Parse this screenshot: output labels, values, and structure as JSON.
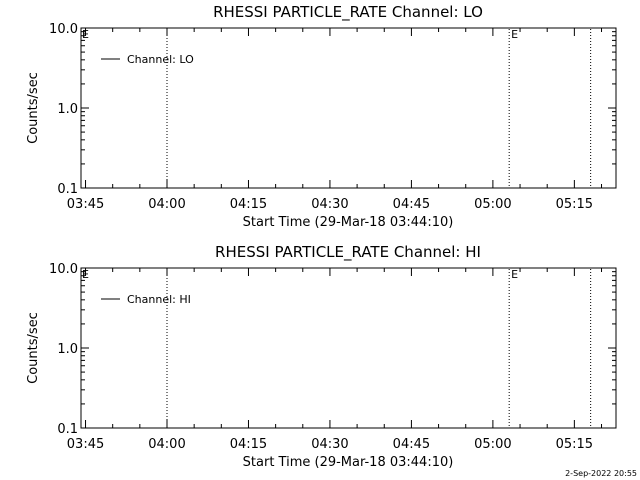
{
  "chart_data": [
    {
      "type": "line",
      "title": "RHESSI PARTICLE_RATE Channel: LO",
      "xlabel": "Start Time (29-Mar-18 03:44:10)",
      "ylabel": "Counts/sec",
      "y_scale": "log",
      "ylim": [
        0.1,
        10.0
      ],
      "y_ticks": [
        "10.0",
        "1.0",
        "0.1"
      ],
      "x_ticks": [
        "03:45",
        "04:00",
        "04:15",
        "04:30",
        "04:45",
        "05:00",
        "05:15"
      ],
      "xlim": [
        "03:44:10",
        "05:22:40"
      ],
      "legend": {
        "placement": "top-left",
        "entries": [
          "Channel: LO"
        ]
      },
      "series": [
        {
          "name": "Channel: LO",
          "values": []
        }
      ],
      "vlines": [
        {
          "time": "04:00:00",
          "style": "dotted"
        },
        {
          "time": "05:03:00",
          "style": "dotted",
          "label": "E"
        },
        {
          "time": "05:18:00",
          "style": "dotted"
        }
      ],
      "start_flag": "E",
      "grid": false
    },
    {
      "type": "line",
      "title": "RHESSI PARTICLE_RATE Channel: HI",
      "xlabel": "Start Time (29-Mar-18 03:44:10)",
      "ylabel": "Counts/sec",
      "y_scale": "log",
      "ylim": [
        0.1,
        10.0
      ],
      "y_ticks": [
        "10.0",
        "1.0",
        "0.1"
      ],
      "x_ticks": [
        "03:45",
        "04:00",
        "04:15",
        "04:30",
        "04:45",
        "05:00",
        "05:15"
      ],
      "xlim": [
        "03:44:10",
        "05:22:40"
      ],
      "legend": {
        "placement": "top-left",
        "entries": [
          "Channel: HI"
        ]
      },
      "series": [
        {
          "name": "Channel: HI",
          "values": []
        }
      ],
      "vlines": [
        {
          "time": "04:00:00",
          "style": "dotted"
        },
        {
          "time": "05:03:00",
          "style": "dotted",
          "label": "E"
        },
        {
          "time": "05:18:00",
          "style": "dotted"
        }
      ],
      "start_flag": "E",
      "grid": false
    }
  ],
  "footer": {
    "timestamp": "2-Sep-2022 20:55"
  }
}
